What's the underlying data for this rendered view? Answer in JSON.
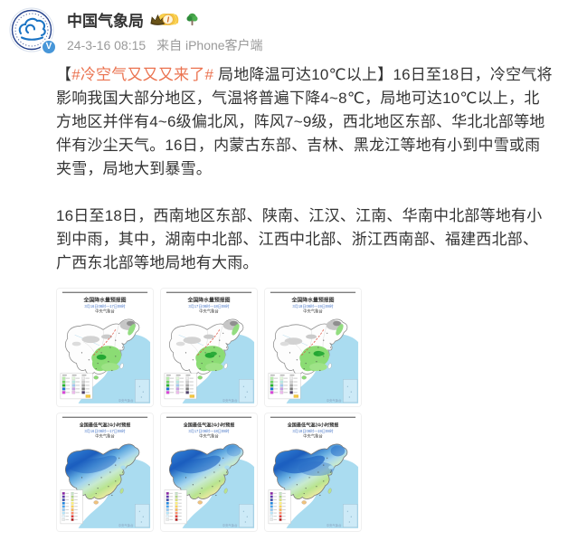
{
  "colors": {
    "hashtag_orange": "#eb7350",
    "verified_blue": "#4796d8",
    "meta_gray": "#9a9a9a",
    "text_dark": "#333333"
  },
  "header": {
    "username": "中国气象局",
    "badge_level": "I",
    "badge_crown": "crown-badge",
    "badge_tree": "tree-emoji",
    "verified_mark": "V",
    "timestamp": "24-3-16 08:15",
    "source_prefix": "来自",
    "source": "iPhone客户端"
  },
  "post": {
    "bracket_open": "【",
    "hashtag": "#冷空气又又又来了#",
    "para1_rest": " 局地降温可达10℃以上】16日至18日，冷空气将影响我国大部分地区，气温将普遍下降4~8℃，局地可达10℃以上，北方地区并伴有4~6级偏北风，阵风7~9级，西北地区东部、华北北部等地伴有沙尘天气。16日，内蒙古东部、吉林、黑龙江等地有小到中雪或雨夹雪，局地大到暴雪。",
    "para2": "16日至18日，西南地区东部、陕南、江汉、江南、华南中北部等地有小到中雨，其中，湖南中北部、江西中北部、浙江西南部、福建西北部、广西东北部等地局地有大雨。"
  },
  "images": {
    "maps": [
      {
        "type": "precipitation",
        "title": "全国降水量预报图",
        "date": "3月16日08时—17日08时",
        "agency": "中央气象台"
      },
      {
        "type": "precipitation",
        "title": "全国降水量预报图",
        "date": "3月17日08时—18日08时",
        "agency": "中央气象台"
      },
      {
        "type": "precipitation",
        "title": "全国降水量预报图",
        "date": "3月18日08时—19日08时",
        "agency": "中央气象台"
      },
      {
        "type": "min_temperature",
        "title": "全国最低气温24小时预报",
        "date": "3月16日08时—17日08时",
        "agency": "中央气象台"
      },
      {
        "type": "min_temperature",
        "title": "全国最低气温24小时预报",
        "date": "3月17日08时—18日08时",
        "agency": "中央气象台"
      },
      {
        "type": "min_temperature",
        "title": "全国最低气温24小时预报",
        "date": "3月18日08时—19日08时",
        "agency": "中央气象台"
      }
    ]
  }
}
